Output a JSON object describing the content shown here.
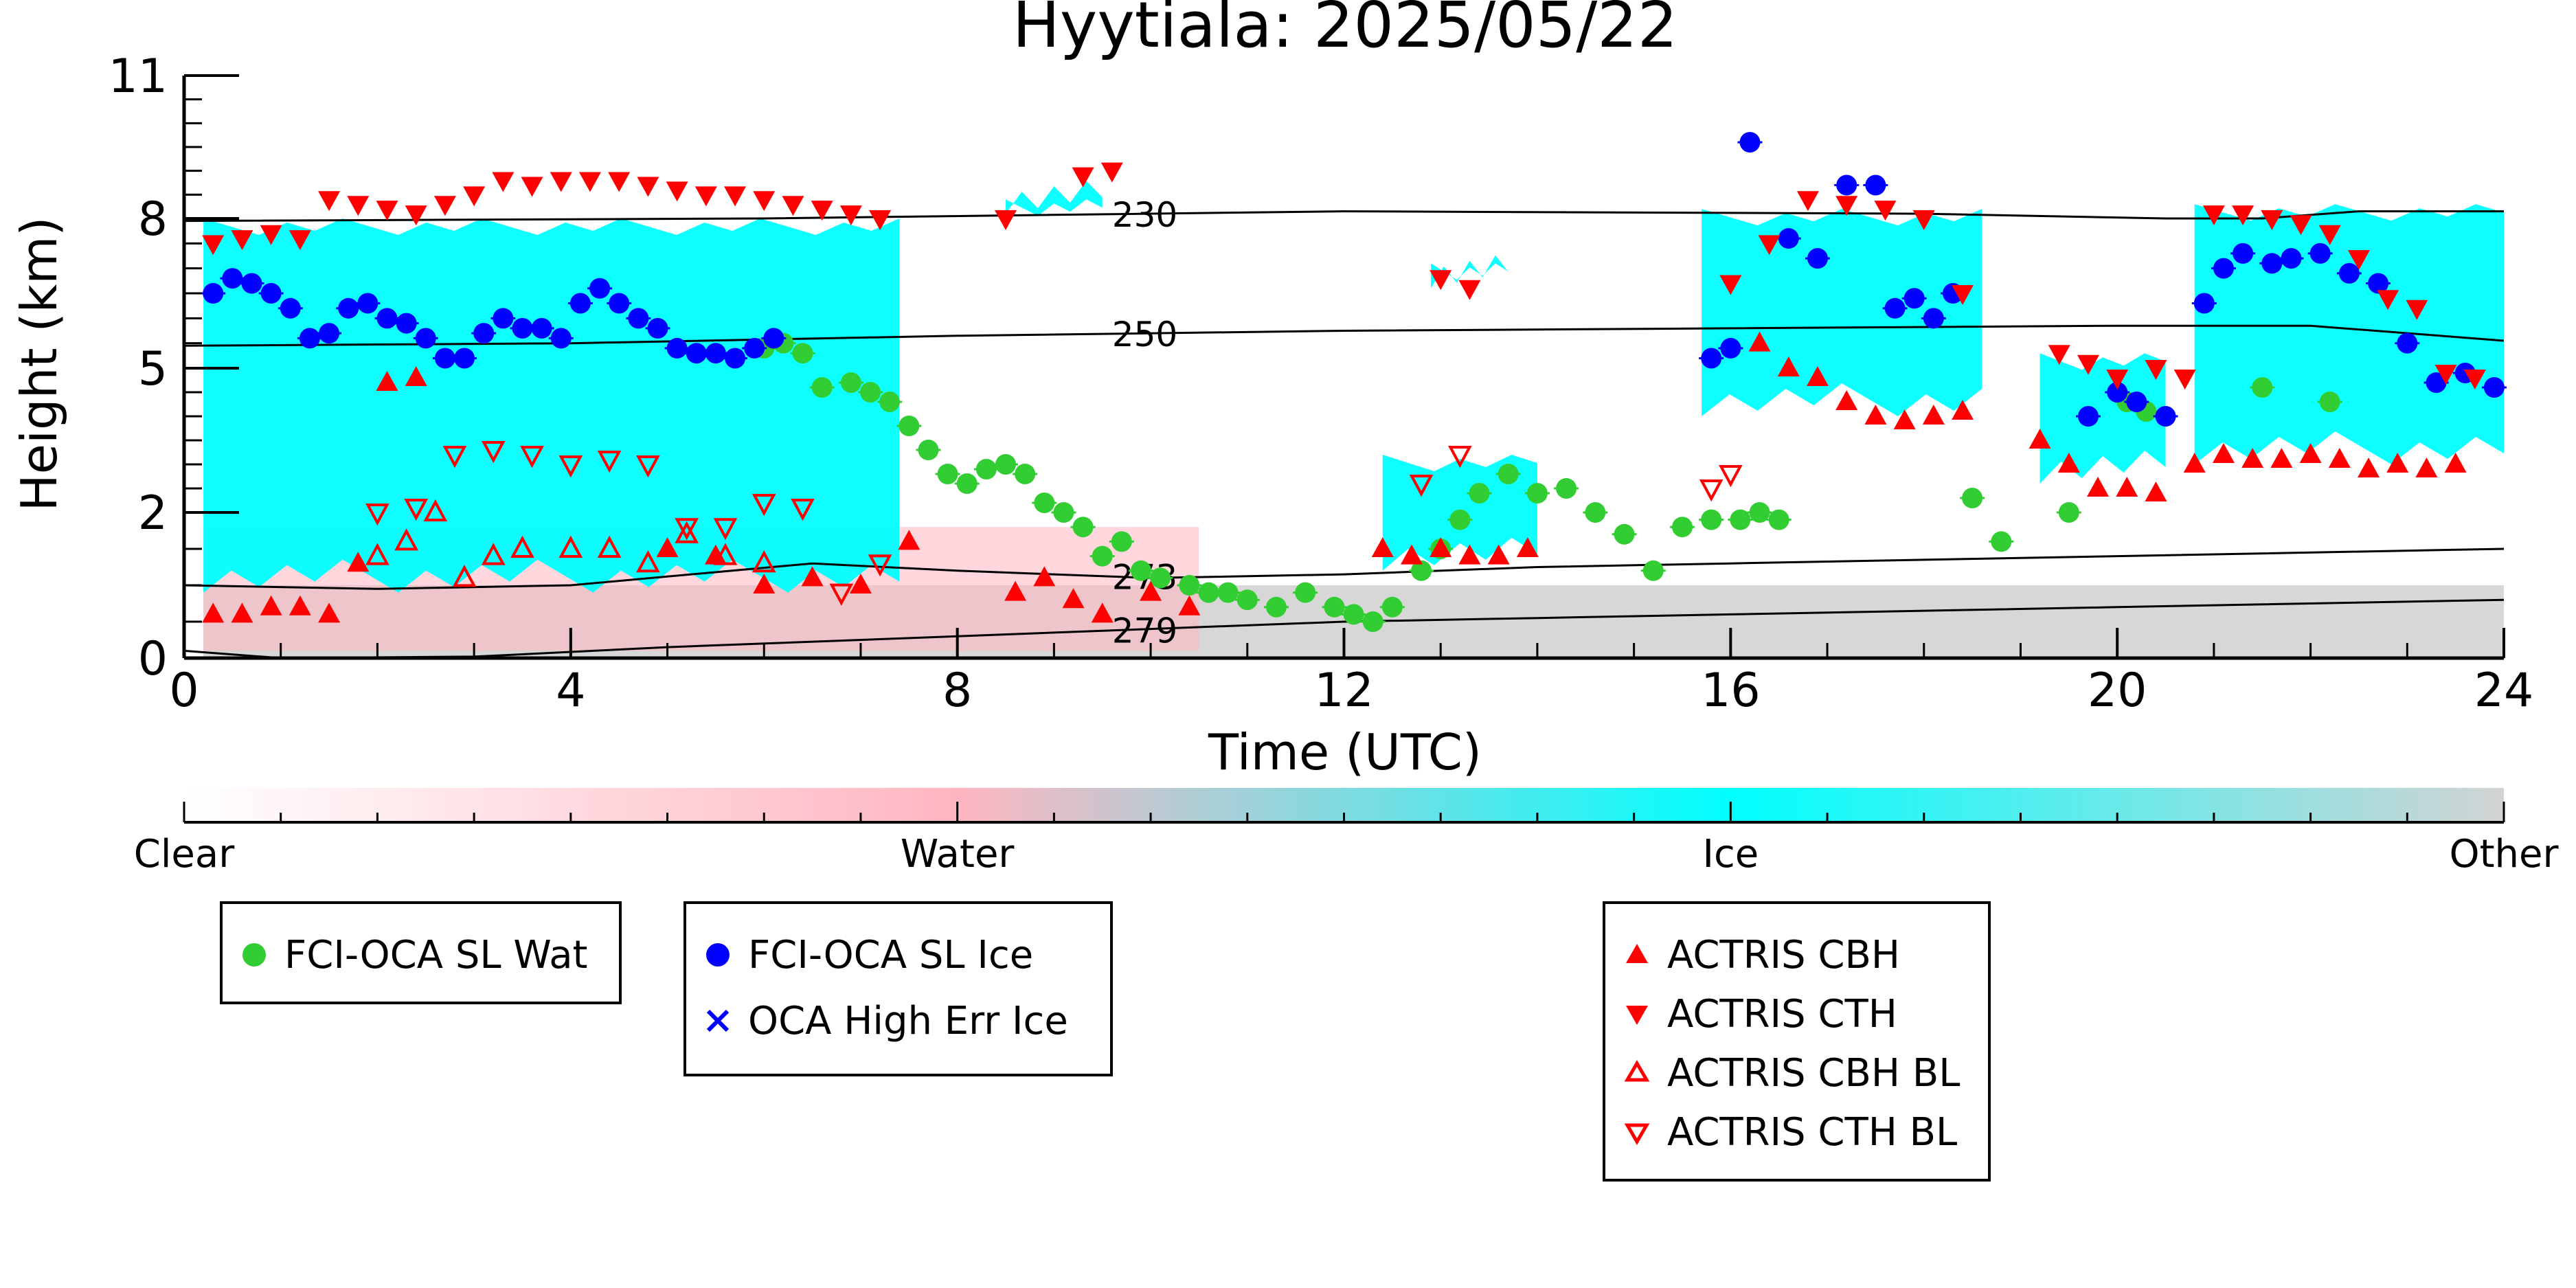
{
  "chart_data": {
    "type": "scatter",
    "title": "Hyytiala: 2025/05/22",
    "xlabel": "Time (UTC)",
    "ylabel": "Height (km)",
    "xlim": [
      0,
      24
    ],
    "ylim": [
      0,
      11
    ],
    "x_ticks": [
      "0",
      "4",
      "8",
      "12",
      "16",
      "20",
      "24"
    ],
    "y_ticks": [
      "0",
      "2",
      "5",
      "8",
      "11"
    ],
    "y_tick_values": [
      0,
      2,
      5,
      8,
      11
    ],
    "y_scale": "nonlinear (stretched at low heights)",
    "grid": false,
    "background_field": {
      "description": "Cloud phase classification (ceilometer/radar), time-height curtain",
      "colorbar_labels": [
        "Clear",
        "Water",
        "Ice",
        "Other"
      ],
      "colors": {
        "Clear": "#ffffff",
        "Water": "#ffb6c1",
        "Ice": "#00ffff",
        "Other": "#d3d3d3"
      },
      "ice_regions": [
        {
          "x": [
            0.2,
            7.4
          ],
          "ytop": 8.0,
          "ybot": 0.9
        },
        {
          "x": [
            8.5,
            9.5
          ],
          "ytop": 8.4,
          "ybot": 8.1
        },
        {
          "x": [
            12.4,
            14.0
          ],
          "ytop": 3.2,
          "ybot": 1.2
        },
        {
          "x": [
            12.9,
            13.7
          ],
          "ytop": 7.1,
          "ybot": 6.6
        },
        {
          "x": [
            15.7,
            18.6
          ],
          "ytop": 8.2,
          "ybot": 4.0
        },
        {
          "x": [
            19.2,
            20.5
          ],
          "ytop": 5.3,
          "ybot": 2.6
        },
        {
          "x": [
            20.8,
            24.0
          ],
          "ytop": 8.3,
          "ybot": 3.0
        }
      ],
      "other_regions": [
        {
          "x": [
            0.2,
            24.0
          ],
          "ytop": 1.0,
          "ybot": 0.0
        }
      ],
      "water_regions": [
        {
          "x": [
            0.2,
            10.5
          ],
          "ytop": 1.8,
          "ybot": 0.1
        }
      ]
    },
    "isotherms": [
      {
        "label": "230",
        "x": [
          0,
          6,
          12,
          18,
          20.5,
          21.5,
          22.5,
          24
        ],
        "y": [
          7.95,
          8.0,
          8.15,
          8.1,
          8.0,
          8.0,
          8.15,
          8.15
        ]
      },
      {
        "label": "250",
        "x": [
          0,
          4,
          8,
          12,
          16,
          20,
          22,
          24
        ],
        "y": [
          5.45,
          5.5,
          5.65,
          5.75,
          5.8,
          5.85,
          5.85,
          5.55
        ]
      },
      {
        "label": "273",
        "x": [
          0,
          2,
          4,
          6.5,
          8,
          10,
          12,
          14,
          16,
          18,
          20,
          24
        ],
        "y": [
          1.0,
          0.95,
          1.0,
          1.3,
          1.2,
          1.1,
          1.15,
          1.25,
          1.3,
          1.35,
          1.4,
          1.5
        ]
      },
      {
        "label": "279",
        "x": [
          0,
          1,
          3,
          5,
          8,
          10,
          12,
          14,
          16,
          18,
          20,
          24
        ],
        "y": [
          0.1,
          0.0,
          0.02,
          0.15,
          0.3,
          0.4,
          0.5,
          0.55,
          0.6,
          0.65,
          0.7,
          0.8
        ]
      }
    ],
    "isotherm_label_x": 9.6,
    "series": [
      {
        "name": "FCI-OCA SL Wat",
        "color": "#32cd32",
        "marker": "circle-filled",
        "x": [
          6.0,
          6.2,
          6.4,
          6.6,
          6.9,
          7.1,
          7.3,
          7.5,
          7.7,
          7.9,
          8.1,
          8.3,
          8.5,
          8.7,
          8.9,
          9.1,
          9.3,
          9.5,
          9.7,
          9.9,
          10.1,
          10.4,
          10.6,
          10.8,
          11.0,
          11.3,
          11.6,
          11.9,
          12.1,
          12.3,
          12.5,
          12.8,
          13.0,
          13.2,
          13.4,
          13.7,
          14.0,
          14.3,
          14.6,
          14.9,
          15.2,
          15.5,
          15.8,
          16.1,
          16.3,
          16.5,
          18.5,
          18.8,
          19.5,
          20.1,
          20.3,
          21.5,
          22.2
        ],
        "y": [
          5.4,
          5.5,
          5.3,
          4.6,
          4.7,
          4.5,
          4.3,
          3.8,
          3.3,
          2.8,
          2.6,
          2.9,
          3.0,
          2.8,
          2.2,
          2.0,
          1.8,
          1.4,
          1.6,
          1.2,
          1.1,
          1.0,
          0.9,
          0.9,
          0.8,
          0.7,
          0.9,
          0.7,
          0.6,
          0.5,
          0.7,
          1.2,
          1.5,
          1.9,
          2.4,
          2.8,
          2.4,
          2.5,
          2.0,
          1.7,
          1.2,
          1.8,
          1.9,
          1.9,
          2.0,
          1.9,
          2.3,
          1.6,
          2.0,
          4.3,
          4.1,
          4.6,
          4.3
        ]
      },
      {
        "name": "FCI-OCA SL Ice",
        "color": "#0000ff",
        "marker": "circle-filled",
        "x": [
          0.3,
          0.5,
          0.7,
          0.9,
          1.1,
          1.3,
          1.5,
          1.7,
          1.9,
          2.1,
          2.3,
          2.5,
          2.7,
          2.9,
          3.1,
          3.3,
          3.5,
          3.7,
          3.9,
          4.1,
          4.3,
          4.5,
          4.7,
          4.9,
          5.1,
          5.3,
          5.5,
          5.7,
          5.9,
          6.1,
          15.8,
          16.0,
          16.2,
          16.6,
          16.9,
          17.2,
          17.5,
          17.7,
          17.9,
          18.1,
          18.3,
          19.7,
          20.0,
          20.2,
          20.5,
          20.9,
          21.1,
          21.3,
          21.6,
          21.8,
          22.1,
          22.4,
          22.7,
          23.0,
          23.3,
          23.6,
          23.9
        ],
        "y": [
          6.5,
          6.8,
          6.7,
          6.5,
          6.2,
          5.6,
          5.7,
          6.2,
          6.3,
          6.0,
          5.9,
          5.6,
          5.2,
          5.2,
          5.7,
          6.0,
          5.8,
          5.8,
          5.6,
          6.3,
          6.6,
          6.3,
          6.0,
          5.8,
          5.4,
          5.3,
          5.3,
          5.2,
          5.4,
          5.6,
          5.2,
          5.4,
          9.6,
          7.6,
          7.2,
          8.7,
          8.7,
          6.2,
          6.4,
          6.0,
          6.5,
          4.0,
          4.5,
          4.3,
          4.0,
          6.3,
          7.0,
          7.3,
          7.1,
          7.2,
          7.3,
          6.9,
          6.7,
          5.5,
          4.7,
          4.9,
          4.6
        ]
      },
      {
        "name": "OCA High Err Ice",
        "color": "#0000ff",
        "marker": "x",
        "x": [],
        "y": []
      },
      {
        "name": "ACTRIS CBH",
        "color": "#ff0000",
        "marker": "triangle-up-filled",
        "x": [
          0.3,
          0.6,
          0.9,
          1.2,
          1.5,
          1.8,
          2.1,
          2.4,
          5.0,
          5.5,
          6.0,
          6.5,
          7.0,
          7.5,
          8.6,
          8.9,
          9.2,
          9.5,
          10.0,
          10.4,
          12.4,
          12.7,
          13.0,
          13.3,
          13.6,
          13.9,
          16.3,
          16.6,
          16.9,
          17.2,
          17.5,
          17.8,
          18.1,
          18.4,
          19.2,
          19.5,
          19.8,
          20.1,
          20.4,
          20.8,
          21.1,
          21.4,
          21.7,
          22.0,
          22.3,
          22.6,
          22.9,
          23.2,
          23.5
        ],
        "y": [
          0.6,
          0.6,
          0.7,
          0.7,
          0.6,
          1.3,
          4.7,
          4.8,
          1.5,
          1.4,
          1.0,
          1.1,
          1.0,
          1.6,
          0.9,
          1.1,
          0.8,
          0.6,
          0.9,
          0.7,
          1.5,
          1.4,
          1.5,
          1.4,
          1.4,
          1.5,
          5.5,
          5.0,
          4.8,
          4.3,
          4.0,
          3.9,
          4.0,
          4.1,
          3.5,
          3.0,
          2.5,
          2.5,
          2.4,
          3.0,
          3.2,
          3.1,
          3.1,
          3.2,
          3.1,
          2.9,
          3.0,
          2.9,
          3.0
        ]
      },
      {
        "name": "ACTRIS CTH",
        "color": "#ff0000",
        "marker": "triangle-down-filled",
        "x": [
          0.3,
          0.6,
          0.9,
          1.2,
          1.5,
          1.8,
          2.1,
          2.4,
          2.7,
          3.0,
          3.3,
          3.6,
          3.9,
          4.2,
          4.5,
          4.8,
          5.1,
          5.4,
          5.7,
          6.0,
          6.3,
          6.6,
          6.9,
          7.2,
          8.5,
          9.3,
          9.6,
          13.0,
          13.3,
          16.0,
          16.4,
          16.8,
          17.2,
          17.6,
          18.0,
          18.4,
          19.4,
          19.7,
          20.0,
          20.4,
          20.7,
          21.0,
          21.3,
          21.6,
          21.9,
          22.2,
          22.5,
          22.8,
          23.1,
          23.4,
          23.7
        ],
        "y": [
          7.5,
          7.6,
          7.7,
          7.6,
          8.4,
          8.3,
          8.2,
          8.1,
          8.3,
          8.5,
          8.8,
          8.7,
          8.8,
          8.8,
          8.8,
          8.7,
          8.6,
          8.5,
          8.5,
          8.4,
          8.3,
          8.2,
          8.1,
          8.0,
          8.0,
          8.9,
          9.0,
          6.8,
          6.6,
          6.7,
          7.5,
          8.4,
          8.3,
          8.2,
          8.0,
          6.5,
          5.3,
          5.1,
          4.8,
          5.0,
          4.8,
          8.1,
          8.1,
          8.0,
          7.9,
          7.7,
          7.2,
          6.4,
          6.2,
          4.9,
          4.8
        ]
      },
      {
        "name": "ACTRIS CBH BL",
        "color": "#ff0000",
        "marker": "triangle-up-open",
        "x": [
          2.0,
          2.3,
          2.6,
          2.9,
          3.2,
          3.5,
          4.0,
          4.4,
          4.8,
          5.2,
          5.6,
          6.0
        ],
        "y": [
          1.4,
          1.6,
          2.0,
          1.1,
          1.4,
          1.5,
          1.5,
          1.5,
          1.3,
          1.7,
          1.4,
          1.3
        ]
      },
      {
        "name": "ACTRIS CTH BL",
        "color": "#ff0000",
        "marker": "triangle-down-open",
        "x": [
          2.0,
          2.4,
          2.8,
          3.2,
          3.6,
          4.0,
          4.4,
          4.8,
          5.2,
          5.6,
          6.0,
          6.4,
          6.8,
          7.2,
          12.8,
          13.2,
          15.8,
          16.0
        ],
        "y": [
          2.0,
          2.1,
          3.2,
          3.3,
          3.2,
          3.0,
          3.1,
          3.0,
          1.8,
          1.8,
          2.2,
          2.1,
          0.9,
          1.3,
          2.6,
          3.2,
          2.5,
          2.8
        ]
      }
    ],
    "legend": [
      {
        "entries": [
          "FCI-OCA SL Wat"
        ],
        "placement": "bottom-left"
      },
      {
        "entries": [
          "FCI-OCA SL Ice",
          "OCA High Err Ice"
        ],
        "placement": "bottom-left-center"
      },
      {
        "entries": [
          "ACTRIS CBH",
          "ACTRIS CTH",
          "ACTRIS CBH BL",
          "ACTRIS CTH BL"
        ],
        "placement": "bottom-center-right"
      }
    ]
  }
}
